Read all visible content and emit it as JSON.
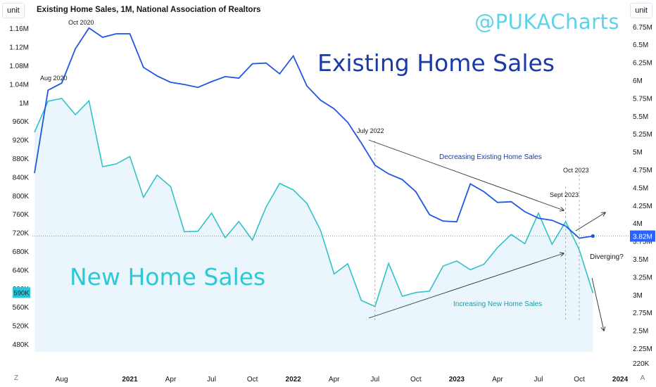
{
  "header": {
    "left_unit_label": "unit",
    "right_unit_label": "unit",
    "title": "Existing Home Sales, 1M, National Association of Realtors",
    "watermark": "@PUKACharts"
  },
  "bottom_controls": {
    "left_button": "Z",
    "right_button": "A"
  },
  "colors": {
    "existing": "#1e58e0",
    "new_line": "#31c2c9",
    "new_fill": "#eaf6fb",
    "arrow": "#2a2e39",
    "grid_text": "#131722",
    "price_line": "#5b7fd6"
  },
  "chart_data": {
    "type": "line",
    "title": "Existing Home Sales, 1M, National Association of Realtors",
    "x_ticks": [
      "Aug",
      "2021",
      "Apr",
      "Jul",
      "Oct",
      "2022",
      "Apr",
      "Jul",
      "Oct",
      "2023",
      "Apr",
      "Jul",
      "Oct",
      "2024"
    ],
    "x": [
      "2020-06",
      "2020-07",
      "2020-08",
      "2020-09",
      "2020-10",
      "2020-11",
      "2020-12",
      "2021-01",
      "2021-02",
      "2021-03",
      "2021-04",
      "2021-05",
      "2021-06",
      "2021-07",
      "2021-08",
      "2021-09",
      "2021-10",
      "2021-11",
      "2021-12",
      "2022-01",
      "2022-02",
      "2022-03",
      "2022-04",
      "2022-05",
      "2022-06",
      "2022-07",
      "2022-08",
      "2022-09",
      "2022-10",
      "2022-11",
      "2022-12",
      "2023-01",
      "2023-02",
      "2023-03",
      "2023-04",
      "2023-05",
      "2023-06",
      "2023-07",
      "2023-08",
      "2023-09",
      "2023-10",
      "2023-11"
    ],
    "left_axis": {
      "ticks": [
        "480K",
        "520K",
        "560K",
        "600K",
        "640K",
        "680K",
        "720K",
        "760K",
        "800K",
        "840K",
        "880K",
        "920K",
        "960K",
        "1M",
        "1.04M",
        "1.08M",
        "1.12M",
        "1.16M"
      ],
      "last_value_label": "590K"
    },
    "right_axis": {
      "ticks": [
        "220K",
        "2.25M",
        "2.5M",
        "2.75M",
        "3M",
        "3.25M",
        "3.5M",
        "3.75M",
        "4M",
        "4.25M",
        "4.5M",
        "4.75M",
        "5M",
        "5.25M",
        "5.5M",
        "5.75M",
        "6M",
        "6.25M",
        "6.5M",
        "6.75M"
      ],
      "last_value_label": "3.82M"
    },
    "series": [
      {
        "name": "Existing Home Sales",
        "axis": "right",
        "values": [
          4.7,
          5.86,
          5.96,
          6.44,
          6.73,
          6.6,
          6.65,
          6.65,
          6.18,
          6.06,
          5.97,
          5.94,
          5.9,
          5.98,
          6.05,
          6.03,
          6.23,
          6.24,
          6.09,
          6.34,
          5.92,
          5.72,
          5.6,
          5.41,
          5.12,
          4.81,
          4.69,
          4.61,
          4.44,
          4.12,
          4.03,
          4.02,
          4.55,
          4.44,
          4.29,
          4.3,
          4.16,
          4.07,
          4.04,
          3.96,
          3.79,
          3.82
        ]
      },
      {
        "name": "New Home Sales",
        "axis": "left",
        "values": [
          936000,
          1003000,
          1009000,
          974000,
          1004000,
          862000,
          868000,
          884000,
          796000,
          844000,
          819000,
          722000,
          723000,
          762000,
          709000,
          744000,
          704000,
          775000,
          826000,
          812000,
          783000,
          725000,
          631000,
          653000,
          574000,
          561000,
          654000,
          583000,
          591000,
          594000,
          648000,
          659000,
          640000,
          652000,
          688000,
          716000,
          696000,
          762000,
          695000,
          744000,
          683000,
          590000
        ]
      }
    ],
    "annotations": [
      "Oct 2020",
      "Aug 2020",
      "July 2022",
      "Decreasing Existing Home Sales",
      "Oct 2023",
      "Sept 2023",
      "Diverging?",
      "Increasing New Home Sales",
      "Existing Home Sales",
      "New Home Sales"
    ]
  }
}
